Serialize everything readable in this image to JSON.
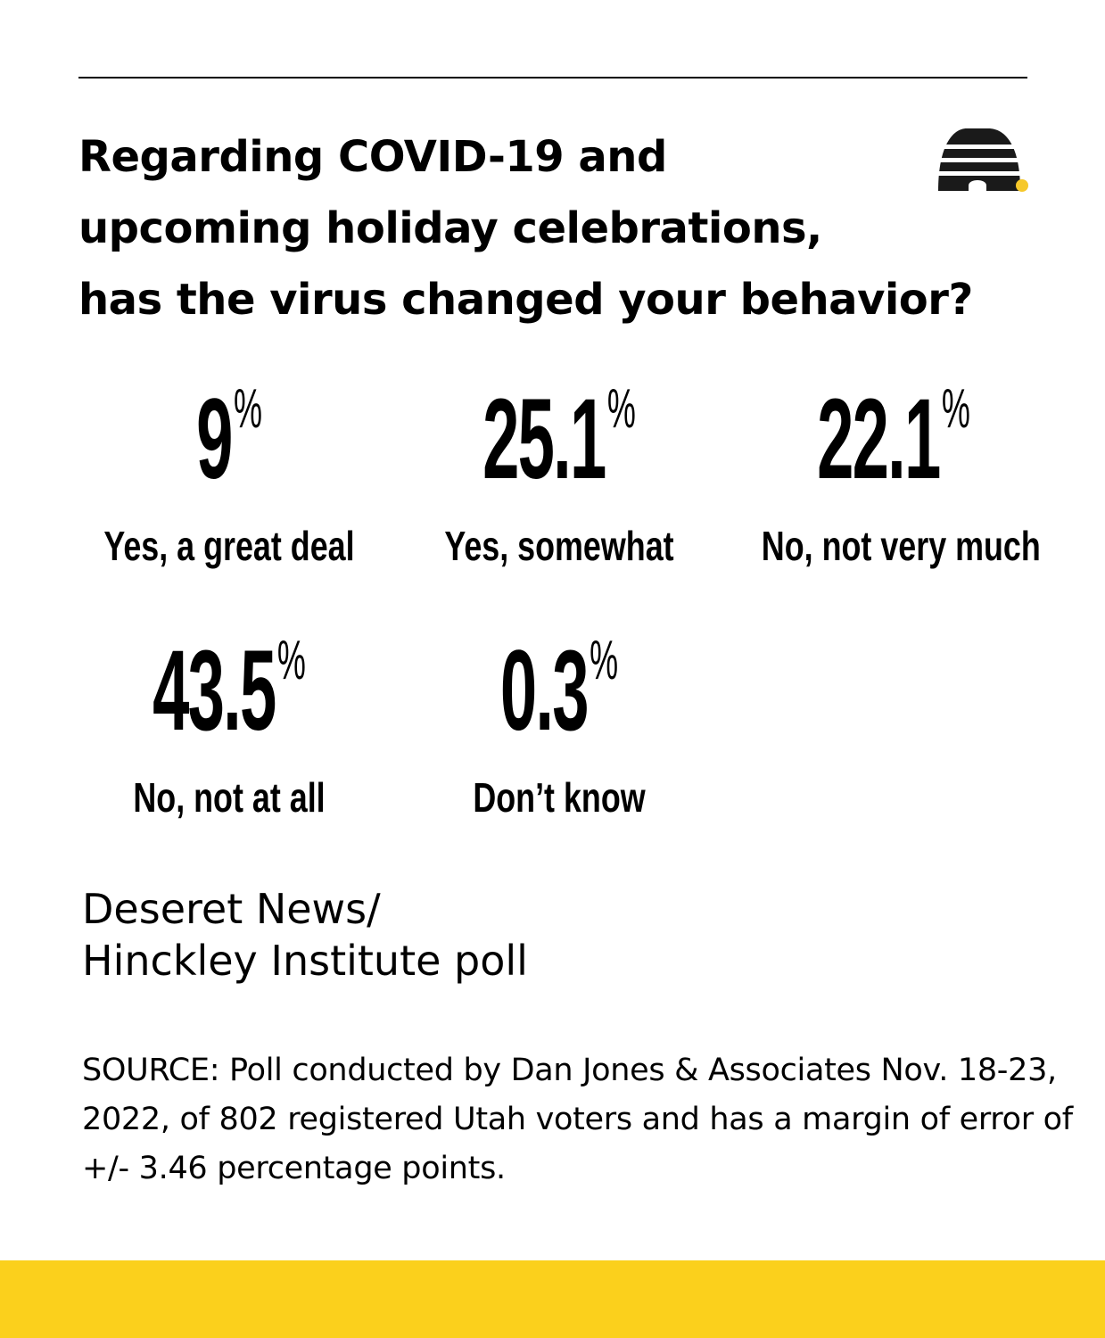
{
  "title": "Regarding COVID-19 and\nupcoming holiday celebrations,\nhas the virus changed your behavior?",
  "logo": {
    "icon": "beehive-icon",
    "dot_color": "#F6C82A",
    "color": "#1a1a1a"
  },
  "percent_sign": "%",
  "chart_data": {
    "type": "table",
    "title": "Regarding COVID-19 and upcoming holiday celebrations, has the virus changed your behavior?",
    "unit": "%",
    "categories": [
      "Yes, a great deal",
      "Yes, somewhat",
      "No, not very much",
      "No, not at all",
      "Don’t know"
    ],
    "values": [
      9,
      25.1,
      22.1,
      43.5,
      0.3
    ],
    "display_values": [
      "9",
      "25.1",
      "22.1",
      "43.5",
      "0.3"
    ]
  },
  "credit": "Deseret News/\nHinckley Institute poll",
  "source": "SOURCE: Poll conducted by Dan Jones & Associates Nov. 18-23, 2022, of 802 registered Utah voters and has a margin of error of +/- 3.46 percentage points.",
  "colors": {
    "accent": "#FBD01C",
    "text": "#000000",
    "background": "#FFFFFF"
  }
}
